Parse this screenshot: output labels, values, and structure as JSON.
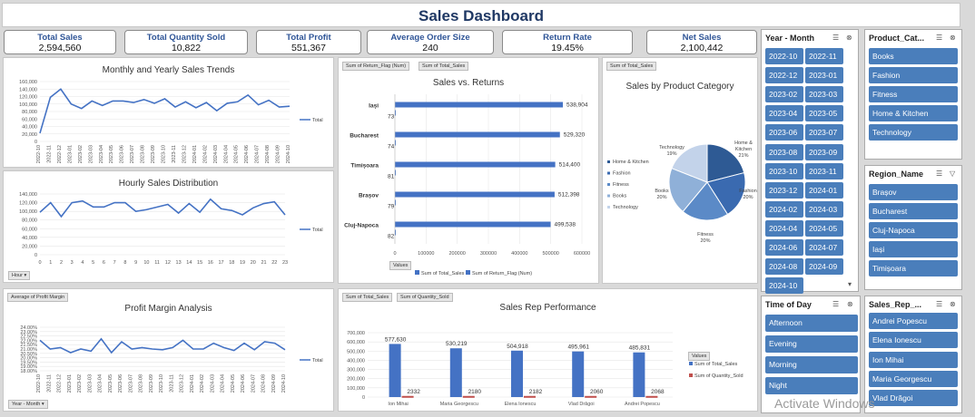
{
  "title": "Sales Dashboard",
  "kpis": [
    {
      "label": "Total Sales",
      "value": "2,594,560"
    },
    {
      "label": "Total Quantity Sold",
      "value": "10,822"
    },
    {
      "label": "Total Profit",
      "value": "551,367"
    },
    {
      "label": "Average Order Size",
      "value": "240"
    },
    {
      "label": "Return Rate",
      "value": "19.45%"
    },
    {
      "label": "Net Sales",
      "value": "2,100,442"
    }
  ],
  "colors": {
    "accent": "#4a7ebb",
    "title": "#1f3864",
    "kpi_label": "#2f5597",
    "line": "#4472c4",
    "bar": "#4472c4",
    "bar2": "#c0504d"
  },
  "chart_data": [
    {
      "type": "line",
      "title": "Monthly and Yearly Sales Trends",
      "legend": "Total",
      "x": [
        "2022-10",
        "2022-11",
        "2022-12",
        "2023-01",
        "2023-02",
        "2023-03",
        "2023-04",
        "2023-05",
        "2023-06",
        "2023-07",
        "2023-08",
        "2023-09",
        "2023-10",
        "2023-11",
        "2023-12",
        "2024-01",
        "2024-02",
        "2024-03",
        "2024-04",
        "2024-05",
        "2024-06",
        "2024-07",
        "2024-08",
        "2024-09",
        "2024-10"
      ],
      "values": [
        22000,
        118000,
        140000,
        100000,
        88000,
        108000,
        96000,
        108000,
        108000,
        104000,
        112000,
        102000,
        114000,
        92000,
        106000,
        90000,
        104000,
        82000,
        102000,
        106000,
        124000,
        98000,
        110000,
        92000,
        94000
      ],
      "ylim": [
        0,
        160000
      ],
      "yticks": [
        "0",
        "20,000",
        "40,000",
        "60,000",
        "80,000",
        "100,000",
        "120,000",
        "140,000",
        "160,000"
      ]
    },
    {
      "type": "line",
      "title": "Hourly Sales Distribution",
      "legend": "Total",
      "filter": "Hour",
      "x": [
        "0",
        "1",
        "2",
        "3",
        "4",
        "5",
        "6",
        "7",
        "8",
        "9",
        "10",
        "11",
        "12",
        "13",
        "14",
        "15",
        "16",
        "17",
        "18",
        "19",
        "20",
        "21",
        "22",
        "23"
      ],
      "values": [
        98000,
        120000,
        88000,
        120000,
        124000,
        110000,
        110000,
        120000,
        120000,
        100000,
        104000,
        110000,
        116000,
        96000,
        118000,
        98000,
        128000,
        106000,
        102000,
        92000,
        108000,
        118000,
        122000,
        92000
      ],
      "ylim": [
        0,
        140000
      ],
      "yticks": [
        "0",
        "20,000",
        "40,000",
        "60,000",
        "80,000",
        "100,000",
        "120,000",
        "140,000"
      ]
    },
    {
      "type": "line",
      "title": "Profit Margin Analysis",
      "legend": "Total",
      "filter": "Year - Month",
      "button": "Average of Profit Margin",
      "x": [
        "2022-10",
        "2022-11",
        "2022-12",
        "2023-01",
        "2023-02",
        "2023-03",
        "2023-04",
        "2023-05",
        "2023-06",
        "2023-07",
        "2023-08",
        "2023-09",
        "2023-10",
        "2023-11",
        "2023-12",
        "2024-01",
        "2024-02",
        "2024-03",
        "2024-04",
        "2024-05",
        "2024-06",
        "2024-07",
        "2024-08",
        "2024-09",
        "2024-10"
      ],
      "values": [
        22.2,
        21.0,
        21.2,
        20.5,
        21.0,
        20.7,
        22.4,
        20.5,
        22.0,
        21.0,
        21.2,
        21.0,
        20.9,
        21.2,
        22.2,
        21.0,
        21.0,
        21.8,
        21.2,
        20.8,
        21.8,
        20.9,
        22.0,
        21.8,
        20.9
      ],
      "ylim": [
        18.0,
        24.0
      ],
      "yticks": [
        "18.00%",
        "19.00%",
        "19.50%",
        "20.00%",
        "20.50%",
        "21.00%",
        "21.50%",
        "22.00%",
        "22.50%",
        "23.00%",
        "24.00%"
      ]
    },
    {
      "type": "bar",
      "orientation": "horizontal",
      "title": "Sales vs. Returns",
      "buttons": [
        "Sum of Return_Flag (Num)",
        "Sum of Total_Sales"
      ],
      "values_label": "Values",
      "categories": [
        "Iași",
        "Bucharest",
        "Timișoara",
        "Brașov",
        "Cluj-Napoca"
      ],
      "series": [
        {
          "name": "Sum of Total_Sales",
          "values": [
            538904,
            529320,
            514400,
            512398,
            499538
          ]
        },
        {
          "name": "Sum of Return_Flag (Num)",
          "values": [
            73,
            74,
            81,
            79,
            82
          ]
        }
      ],
      "xlim": [
        0,
        600000
      ],
      "xticks": [
        "0",
        "100000",
        "200000",
        "300000",
        "400000",
        "500000",
        "600000"
      ]
    },
    {
      "type": "pie",
      "title": "Sales by Product Category",
      "button": "Sum of Total_Sales",
      "categories": [
        "Home & Kitchen",
        "Fashion",
        "Fitness",
        "Books",
        "Technology"
      ],
      "values": [
        21,
        20,
        20,
        20,
        19
      ],
      "labels": [
        "Home & Kitchen 21%",
        "Fashion 20%",
        "Fitness 20%",
        "Books 20%",
        "Technology 19%"
      ]
    },
    {
      "type": "bar",
      "title": "Sales Rep Performance",
      "buttons": [
        "Sum of Total_Sales",
        "Sum of Quantity_Sold"
      ],
      "values_label": "Values",
      "categories": [
        "Ion Mihai",
        "Maria Georgescu",
        "Elena Ionescu",
        "Vlad Drăgoi",
        "Andrei Popescu"
      ],
      "series": [
        {
          "name": "Sum of Total_Sales",
          "values": [
            577630,
            530219,
            504918,
            495961,
            485831
          ]
        },
        {
          "name": "Sum of Quantity_Sold",
          "values": [
            2332,
            2180,
            2182,
            2060,
            2068
          ]
        }
      ],
      "ylim": [
        0,
        700000
      ],
      "yticks": [
        "0",
        "100,000",
        "200,000",
        "300,000",
        "400,000",
        "500,000",
        "600,000",
        "700,000"
      ]
    }
  ],
  "slicers": {
    "year_month": {
      "title": "Year - Month",
      "items": [
        "2022-10",
        "2022-11",
        "2022-12",
        "2023-01",
        "2023-02",
        "2023-03",
        "2023-04",
        "2023-05",
        "2023-06",
        "2023-07",
        "2023-08",
        "2023-09",
        "2023-10",
        "2023-11",
        "2023-12",
        "2024-01",
        "2024-02",
        "2024-03",
        "2024-04",
        "2024-05",
        "2024-06",
        "2024-07",
        "2024-08",
        "2024-09",
        "2024-10"
      ]
    },
    "product_category": {
      "title": "Product_Cat...",
      "items": [
        "Books",
        "Fashion",
        "Fitness",
        "Home & Kitchen",
        "Technology"
      ]
    },
    "region": {
      "title": "Region_Name",
      "items": [
        "Brașov",
        "Bucharest",
        "Cluj-Napoca",
        "Iași",
        "Timișoara"
      ]
    },
    "time_of_day": {
      "title": "Time of Day",
      "items": [
        "Afternoon",
        "Evening",
        "Morning",
        "Night"
      ]
    },
    "sales_rep": {
      "title": "Sales_Rep_...",
      "items": [
        "Andrei Popescu",
        "Elena Ionescu",
        "Ion Mihai",
        "Maria Georgescu",
        "Vlad Drăgoi"
      ]
    }
  },
  "watermark": "Activate Windows"
}
